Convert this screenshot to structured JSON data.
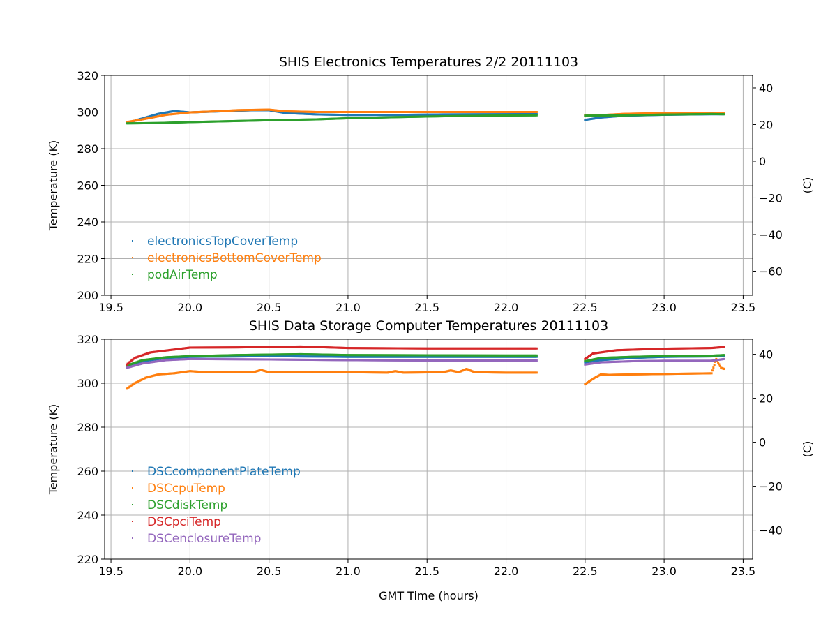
{
  "chart_data": [
    {
      "type": "scatter",
      "title": "SHIS Electronics Temperatures 2/2 20111103",
      "xlabel": "",
      "ylabel": "Temperature (K)",
      "ylabel_right": "(C)",
      "xlim": [
        19.46,
        23.56
      ],
      "ylim": [
        200,
        320
      ],
      "xticks": [
        "19.5",
        "20.0",
        "20.5",
        "21.0",
        "21.5",
        "22.0",
        "22.5",
        "23.0",
        "23.5"
      ],
      "yticks": [
        "200",
        "220",
        "240",
        "260",
        "280",
        "300",
        "320"
      ],
      "yticks_right": [
        "40",
        "20",
        "0",
        "−20",
        "−40",
        "−60"
      ],
      "grid": true,
      "legend_position": "lower-left",
      "series": [
        {
          "name": "electronicsTopCoverTemp",
          "color": "#1f77b4",
          "points": [
            [
              19.6,
              294
            ],
            [
              19.7,
              296.5
            ],
            [
              19.8,
              299
            ],
            [
              19.9,
              300.5
            ],
            [
              20.0,
              299.8
            ],
            [
              20.2,
              300.4
            ],
            [
              20.4,
              301
            ],
            [
              20.5,
              301
            ],
            [
              20.6,
              299.5
            ],
            [
              20.8,
              298.7
            ],
            [
              21.0,
              298.4
            ],
            [
              21.3,
              298.4
            ],
            [
              21.6,
              298.7
            ],
            [
              22.0,
              298.8
            ],
            [
              22.2,
              298.9
            ],
            [
              22.5,
              295.7
            ],
            [
              22.6,
              297
            ],
            [
              22.75,
              298
            ],
            [
              23.0,
              298.5
            ],
            [
              23.3,
              298.8
            ],
            [
              23.38,
              298.8
            ]
          ]
        },
        {
          "name": "electronicsBottomCoverTemp",
          "color": "#ff7f0e",
          "points": [
            [
              19.6,
              294.5
            ],
            [
              19.7,
              296
            ],
            [
              19.85,
              298.5
            ],
            [
              20.0,
              299.8
            ],
            [
              20.2,
              300.5
            ],
            [
              20.3,
              301
            ],
            [
              20.5,
              301.3
            ],
            [
              20.6,
              300.4
            ],
            [
              20.8,
              300
            ],
            [
              21.0,
              300
            ],
            [
              21.5,
              300
            ],
            [
              22.0,
              300
            ],
            [
              22.2,
              300
            ],
            [
              22.5,
              298.2
            ],
            [
              22.6,
              298.3
            ],
            [
              22.75,
              299
            ],
            [
              23.0,
              299.4
            ],
            [
              23.3,
              299.5
            ],
            [
              23.38,
              299.5
            ]
          ]
        },
        {
          "name": "podAirTemp",
          "color": "#2ca02c",
          "points": [
            [
              19.6,
              293.8
            ],
            [
              19.8,
              294
            ],
            [
              20.0,
              294.5
            ],
            [
              20.2,
              294.9
            ],
            [
              20.5,
              295.5
            ],
            [
              20.8,
              296
            ],
            [
              21.0,
              296.6
            ],
            [
              21.3,
              297.2
            ],
            [
              21.6,
              297.7
            ],
            [
              22.0,
              298.1
            ],
            [
              22.2,
              298.2
            ],
            [
              22.5,
              298
            ],
            [
              22.7,
              298.1
            ],
            [
              23.0,
              298.6
            ],
            [
              23.3,
              298.9
            ],
            [
              23.38,
              298.8
            ]
          ]
        }
      ]
    },
    {
      "type": "scatter",
      "title": "SHIS Data Storage Computer Temperatures 20111103",
      "xlabel": "GMT Time (hours)",
      "ylabel": "Temperature (K)",
      "ylabel_right": "(C)",
      "xlim": [
        19.46,
        23.56
      ],
      "ylim": [
        220,
        320
      ],
      "xticks": [
        "19.5",
        "20.0",
        "20.5",
        "21.0",
        "21.5",
        "22.0",
        "22.5",
        "23.0",
        "23.5"
      ],
      "yticks": [
        "220",
        "240",
        "260",
        "280",
        "300",
        "320"
      ],
      "yticks_right": [
        "40",
        "20",
        "0",
        "−20",
        "−40"
      ],
      "grid": true,
      "legend_position": "lower-left",
      "series": [
        {
          "name": "DSCcomponentPlateTemp",
          "color": "#1f77b4",
          "points": [
            [
              19.6,
              308
            ],
            [
              19.7,
              310
            ],
            [
              19.85,
              311.5
            ],
            [
              20.0,
              312
            ],
            [
              20.5,
              312.3
            ],
            [
              21.0,
              312
            ],
            [
              21.5,
              312
            ],
            [
              22.0,
              312
            ],
            [
              22.2,
              312
            ],
            [
              22.5,
              309.5
            ],
            [
              22.6,
              310.5
            ],
            [
              22.8,
              311.5
            ],
            [
              23.0,
              312
            ],
            [
              23.3,
              312.2
            ],
            [
              23.38,
              312.5
            ]
          ]
        },
        {
          "name": "DSCcpuTemp",
          "color": "#ff7f0e",
          "points": [
            [
              19.6,
              297.5
            ],
            [
              19.65,
              300
            ],
            [
              19.72,
              302.5
            ],
            [
              19.8,
              304
            ],
            [
              19.9,
              304.5
            ],
            [
              20.0,
              305.5
            ],
            [
              20.1,
              305
            ],
            [
              20.4,
              305
            ],
            [
              20.45,
              306
            ],
            [
              20.5,
              305
            ],
            [
              21.0,
              305
            ],
            [
              21.25,
              304.8
            ],
            [
              21.3,
              305.5
            ],
            [
              21.35,
              304.8
            ],
            [
              21.6,
              305
            ],
            [
              21.65,
              305.8
            ],
            [
              21.7,
              305
            ],
            [
              21.75,
              306.5
            ],
            [
              21.8,
              305
            ],
            [
              22.0,
              304.8
            ],
            [
              22.2,
              304.8
            ],
            [
              22.5,
              299.5
            ],
            [
              22.55,
              302
            ],
            [
              22.6,
              304
            ],
            [
              22.65,
              303.8
            ],
            [
              22.8,
              304
            ],
            [
              23.0,
              304.2
            ],
            [
              23.3,
              304.5
            ],
            [
              23.33,
              311
            ],
            [
              23.36,
              307
            ],
            [
              23.38,
              306.5
            ]
          ]
        },
        {
          "name": "DSCdiskTemp",
          "color": "#2ca02c",
          "points": [
            [
              19.6,
              308
            ],
            [
              19.7,
              310.5
            ],
            [
              19.85,
              311.8
            ],
            [
              20.0,
              312.3
            ],
            [
              20.3,
              312.8
            ],
            [
              20.7,
              313.2
            ],
            [
              21.0,
              312.8
            ],
            [
              21.5,
              312.7
            ],
            [
              22.0,
              312.6
            ],
            [
              22.2,
              312.6
            ],
            [
              22.5,
              310
            ],
            [
              22.6,
              311.5
            ],
            [
              22.8,
              312
            ],
            [
              23.0,
              312.3
            ],
            [
              23.3,
              312.5
            ],
            [
              23.38,
              312.8
            ]
          ]
        },
        {
          "name": "DSCpciTemp",
          "color": "#d62728",
          "points": [
            [
              19.6,
              308.5
            ],
            [
              19.65,
              311.5
            ],
            [
              19.75,
              314
            ],
            [
              19.9,
              315.3
            ],
            [
              20.0,
              316.2
            ],
            [
              20.3,
              316.3
            ],
            [
              20.7,
              316.7
            ],
            [
              21.0,
              316
            ],
            [
              21.5,
              315.8
            ],
            [
              22.0,
              315.8
            ],
            [
              22.2,
              315.8
            ],
            [
              22.5,
              311
            ],
            [
              22.55,
              313.5
            ],
            [
              22.7,
              315
            ],
            [
              23.0,
              315.7
            ],
            [
              23.3,
              316
            ],
            [
              23.38,
              316.5
            ]
          ]
        },
        {
          "name": "DSCenclosureTemp",
          "color": "#9467bd",
          "points": [
            [
              19.6,
              307
            ],
            [
              19.7,
              309
            ],
            [
              19.85,
              310.5
            ],
            [
              20.0,
              311
            ],
            [
              20.5,
              310.8
            ],
            [
              21.0,
              310.5
            ],
            [
              21.5,
              310.3
            ],
            [
              22.0,
              310.3
            ],
            [
              22.2,
              310.3
            ],
            [
              22.5,
              308.5
            ],
            [
              22.6,
              309.5
            ],
            [
              22.8,
              310
            ],
            [
              23.0,
              310.2
            ],
            [
              23.3,
              310.2
            ],
            [
              23.38,
              311
            ]
          ]
        }
      ]
    }
  ]
}
